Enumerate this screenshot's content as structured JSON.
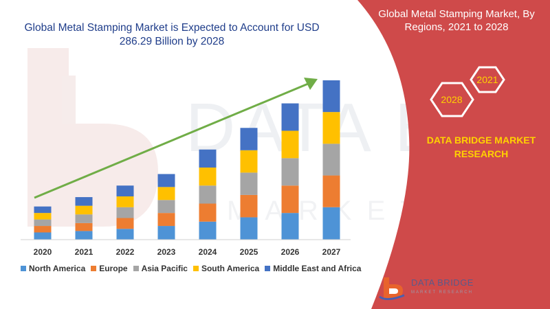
{
  "chart_data": {
    "type": "bar",
    "stacked": true,
    "title": "Global Metal Stamping Market is Expected to Account for USD 286.29 Billion by 2028",
    "categories": [
      "2020",
      "2021",
      "2022",
      "2023",
      "2024",
      "2025",
      "2026",
      "2027"
    ],
    "series": [
      {
        "name": "North America",
        "color": "#4e93d6",
        "values": [
          10,
          12,
          15,
          19,
          25,
          31,
          37,
          45
        ]
      },
      {
        "name": "Europe",
        "color": "#ed7d31",
        "values": [
          9,
          11,
          15,
          18,
          25,
          31,
          38,
          44
        ]
      },
      {
        "name": "Asia Pacific",
        "color": "#a5a5a5",
        "values": [
          9,
          12,
          15,
          18,
          25,
          31,
          38,
          44
        ]
      },
      {
        "name": "South America",
        "color": "#ffc000",
        "values": [
          9,
          12,
          15,
          18,
          25,
          31,
          38,
          44
        ]
      },
      {
        "name": "Middle East and Africa",
        "color": "#4472c4",
        "values": [
          9,
          12,
          15,
          18,
          25,
          31,
          38,
          44
        ]
      }
    ],
    "grid": false,
    "legend_position": "bottom",
    "trend_arrow_color": "#70ad47"
  },
  "panel": {
    "title": "Global Metal Stamping Market, By Regions, 2021 to 2028",
    "hex_labels": [
      "2021",
      "2028"
    ],
    "company": "DATA BRIDGE MARKET RESEARCH",
    "background_color": "#cf4a4a",
    "accent_color": "#ffd200"
  },
  "logo": {
    "name": "DATA BRIDGE",
    "tagline": "MARKET RESEARCH"
  }
}
